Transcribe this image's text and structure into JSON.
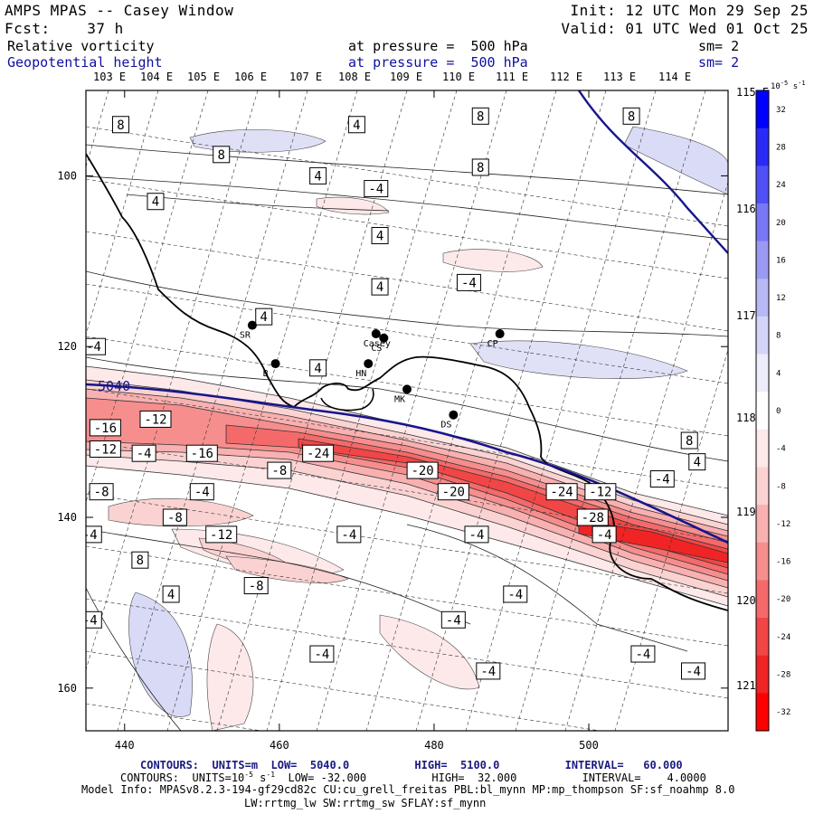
{
  "header": {
    "title": "AMPS MPAS -- Casey Window",
    "forecast": "Fcst:    37 h",
    "init": "Init: 12 UTC Mon 29 Sep 25",
    "valid": "Valid: 01 UTC Wed 01 Oct 25",
    "field1": "Relative vorticity",
    "field1_level": "at pressure =  500 hPa",
    "field1_sm": "sm= 2",
    "field2": "Geopotential height",
    "field2_level": "at pressure =  500 hPa",
    "field2_sm": "sm= 2"
  },
  "colors": {
    "height_contour": "#16168a",
    "positive_shade": "#0000ff",
    "negative_shade": "#ff0000"
  },
  "chart_data": {
    "type": "heatmap",
    "title": "Relative vorticity and geopotential height at 500 hPa",
    "x_ticks": [
      "440",
      "460",
      "480",
      "500"
    ],
    "x_range": [
      435,
      518
    ],
    "y_ticks": [
      "100",
      "120",
      "140",
      "160"
    ],
    "y_range": [
      90,
      165
    ],
    "longitude_labels_top": [
      "103 E",
      "104 E",
      "105 E",
      "106 E",
      "107 E",
      "108 E",
      "109 E",
      "110 E",
      "111 E",
      "112 E",
      "113 E",
      "114 E"
    ],
    "longitude_labels_right": [
      "115 E",
      "116 E",
      "117 E",
      "118 E",
      "119 E",
      "120 E",
      "121 E"
    ],
    "colorbar": {
      "unit": "10^-5 s^-1",
      "unit_base": "10",
      "unit_exp": "-5",
      "unit_tail": "s",
      "unit_tail_exp": "-1",
      "levels": [
        32,
        28,
        24,
        20,
        16,
        12,
        8,
        4,
        0,
        -4,
        -8,
        -12,
        -16,
        -20,
        -24,
        -28,
        -32
      ],
      "colors": [
        "#0000ff",
        "#2a2af8",
        "#5050f6",
        "#7878f5",
        "#9a9af4",
        "#b8b8f5",
        "#d4d4f8",
        "#ececfb",
        "#ffffff",
        "#fde9e9",
        "#fbd2d2",
        "#f9b0b0",
        "#f68e8e",
        "#f46a6a",
        "#f24646",
        "#f02424",
        "#ff0000"
      ]
    },
    "height_contour": {
      "label": "5040",
      "value": 5040
    },
    "contour_labels": [
      {
        "text": "8",
        "x": 439.5,
        "y": 94
      },
      {
        "text": "4",
        "x": 470,
        "y": 94
      },
      {
        "text": "8",
        "x": 486,
        "y": 93
      },
      {
        "text": "8",
        "x": 505.5,
        "y": 93
      },
      {
        "text": "8",
        "x": 452.5,
        "y": 97.5
      },
      {
        "text": "8",
        "x": 486,
        "y": 99
      },
      {
        "text": "4",
        "x": 465,
        "y": 100
      },
      {
        "text": "-4",
        "x": 472.5,
        "y": 101.5
      },
      {
        "text": "4",
        "x": 444,
        "y": 103
      },
      {
        "text": "4",
        "x": 473,
        "y": 107
      },
      {
        "text": "4",
        "x": 473,
        "y": 113
      },
      {
        "text": "-4",
        "x": 484.5,
        "y": 112.5
      },
      {
        "text": "4",
        "x": 458,
        "y": 116.5
      },
      {
        "text": "-4",
        "x": 436,
        "y": 120
      },
      {
        "text": "4",
        "x": 465,
        "y": 122.5
      },
      {
        "text": "-12",
        "x": 444,
        "y": 128.5
      },
      {
        "text": "-16",
        "x": 437.5,
        "y": 129.5
      },
      {
        "text": "8",
        "x": 513,
        "y": 131
      },
      {
        "text": "-12",
        "x": 437.5,
        "y": 132
      },
      {
        "text": "-4",
        "x": 442.5,
        "y": 132.5
      },
      {
        "text": "-16",
        "x": 450,
        "y": 132.5
      },
      {
        "text": "-24",
        "x": 465,
        "y": 132.5
      },
      {
        "text": "-8",
        "x": 460,
        "y": 134.5
      },
      {
        "text": "-20",
        "x": 478.5,
        "y": 134.5
      },
      {
        "text": "4",
        "x": 514,
        "y": 133.5
      },
      {
        "text": "-4",
        "x": 509.5,
        "y": 135.5
      },
      {
        "text": "-8",
        "x": 437,
        "y": 137
      },
      {
        "text": "-4",
        "x": 450,
        "y": 137
      },
      {
        "text": "-20",
        "x": 482.5,
        "y": 137
      },
      {
        "text": "-24",
        "x": 496.5,
        "y": 137
      },
      {
        "text": "-12",
        "x": 501.5,
        "y": 137
      },
      {
        "text": "-8",
        "x": 446.5,
        "y": 140
      },
      {
        "text": "-28",
        "x": 500.5,
        "y": 140
      },
      {
        "text": "-4",
        "x": 435.5,
        "y": 142
      },
      {
        "text": "-12",
        "x": 452.5,
        "y": 142
      },
      {
        "text": "-4",
        "x": 469,
        "y": 142
      },
      {
        "text": "-4",
        "x": 485.5,
        "y": 142
      },
      {
        "text": "-4",
        "x": 502,
        "y": 142
      },
      {
        "text": "8",
        "x": 442,
        "y": 145
      },
      {
        "text": "-8",
        "x": 457,
        "y": 148
      },
      {
        "text": "4",
        "x": 446,
        "y": 149
      },
      {
        "text": "-4",
        "x": 490.5,
        "y": 149
      },
      {
        "text": "-4",
        "x": 435.5,
        "y": 152
      },
      {
        "text": "-4",
        "x": 482.5,
        "y": 152
      },
      {
        "text": "-4",
        "x": 465.5,
        "y": 156
      },
      {
        "text": "-4",
        "x": 507,
        "y": 156
      },
      {
        "text": "-4",
        "x": 487,
        "y": 158
      },
      {
        "text": "-4",
        "x": 513.5,
        "y": 158
      }
    ],
    "stations": [
      {
        "label": "SR",
        "x": 456.5,
        "y": 117.5
      },
      {
        "label": "Casey",
        "x": 472.5,
        "y": 118.5
      },
      {
        "label": "CS",
        "x": 473.5,
        "y": 119
      },
      {
        "label": "CP",
        "x": 488.5,
        "y": 118.5
      },
      {
        "label": "B",
        "x": 459.5,
        "y": 122
      },
      {
        "label": "HN",
        "x": 471.5,
        "y": 122
      },
      {
        "label": "MK",
        "x": 476.5,
        "y": 125
      },
      {
        "label": "DS",
        "x": 482.5,
        "y": 128
      }
    ]
  },
  "footer": {
    "contours_height": "CONTOURS:  UNITS=m  LOW=  5040.0          HIGH=  5100.0          INTERVAL=   60.000",
    "contours_vort_a": "CONTOURS:  UNITS=10",
    "contours_vort_exp1": "-5",
    "contours_vort_b": " s",
    "contours_vort_exp2": "-1",
    "contours_vort_c": "  LOW= -32.000          HIGH=  32.000          INTERVAL=    4.0000",
    "model_info": "Model Info: MPASv8.2.3-194-gf29cd82c CU:cu_grell_freitas PBL:bl_mynn MP:mp_thompson SF:sf_noahmp 8.0",
    "model_info2": "LW:rrtmg_lw SW:rrtmg_sw SFLAY:sf_mynn"
  }
}
